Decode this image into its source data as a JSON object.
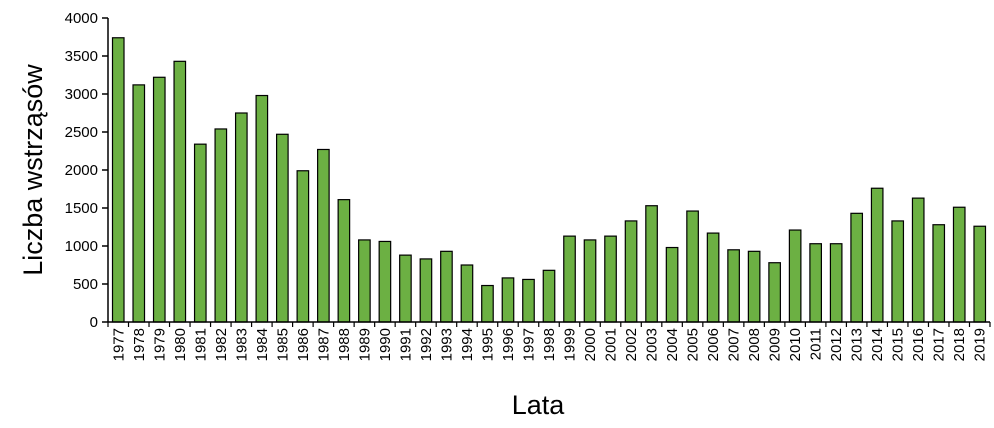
{
  "chart_data": {
    "type": "bar",
    "title": "",
    "xlabel": "Lata",
    "ylabel": "Liczba wstrząsów",
    "ylim": [
      0,
      4000
    ],
    "yticks": [
      0,
      500,
      1000,
      1500,
      2000,
      2500,
      3000,
      3500,
      4000
    ],
    "grid": false,
    "legend": "none",
    "bar_color": "#6cb043",
    "bar_edge_color": "#000000",
    "categories": [
      "1977",
      "1978",
      "1979",
      "1980",
      "1981",
      "1982",
      "1983",
      "1984",
      "1985",
      "1986",
      "1987",
      "1988",
      "1989",
      "1990",
      "1991",
      "1992",
      "1993",
      "1994",
      "1995",
      "1996",
      "1997",
      "1998",
      "1999",
      "2000",
      "2001",
      "2002",
      "2003",
      "2004",
      "2005",
      "2006",
      "2007",
      "2008",
      "2009",
      "2010",
      "2011",
      "2012",
      "2013",
      "2014",
      "2015",
      "2016",
      "2017",
      "2018",
      "2019"
    ],
    "values": [
      3740,
      3120,
      3220,
      3430,
      2340,
      2540,
      2750,
      2980,
      2470,
      1990,
      2270,
      1610,
      1080,
      1060,
      880,
      830,
      930,
      750,
      480,
      580,
      560,
      680,
      1130,
      1080,
      1130,
      1330,
      1530,
      980,
      1460,
      1170,
      950,
      930,
      780,
      1210,
      1030,
      1030,
      1430,
      1760,
      1330,
      1630,
      1280,
      1510,
      1260
    ]
  }
}
